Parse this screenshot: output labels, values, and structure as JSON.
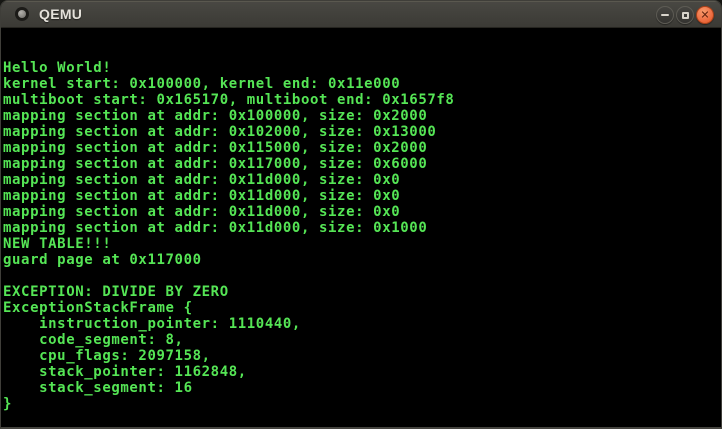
{
  "window": {
    "title": "QEMU",
    "icons": {
      "minimize": "minus",
      "maximize": "square",
      "close": "✕"
    },
    "titlebar_color": "#3b3a35",
    "close_button_color": "#ef7146"
  },
  "terminal": {
    "background": "#000000",
    "text_color": "#55e555",
    "columns": 80,
    "rows": 25,
    "lines": [
      "Hello World!",
      "kernel start: 0x100000, kernel end: 0x11e000",
      "multiboot start: 0x165170, multiboot end: 0x1657f8",
      "mapping section at addr: 0x100000, size: 0x2000",
      "mapping section at addr: 0x102000, size: 0x13000",
      "mapping section at addr: 0x115000, size: 0x2000",
      "mapping section at addr: 0x117000, size: 0x6000",
      "mapping section at addr: 0x11d000, size: 0x0",
      "mapping section at addr: 0x11d000, size: 0x0",
      "mapping section at addr: 0x11d000, size: 0x0",
      "mapping section at addr: 0x11d000, size: 0x1000",
      "NEW TABLE!!!",
      "guard page at 0x117000",
      "",
      "EXCEPTION: DIVIDE BY ZERO",
      "ExceptionStackFrame {",
      "    instruction_pointer: 1110440,",
      "    code_segment: 8,",
      "    cpu_flags: 2097158,",
      "    stack_pointer: 1162848,",
      "    stack_segment: 16",
      "}"
    ]
  }
}
